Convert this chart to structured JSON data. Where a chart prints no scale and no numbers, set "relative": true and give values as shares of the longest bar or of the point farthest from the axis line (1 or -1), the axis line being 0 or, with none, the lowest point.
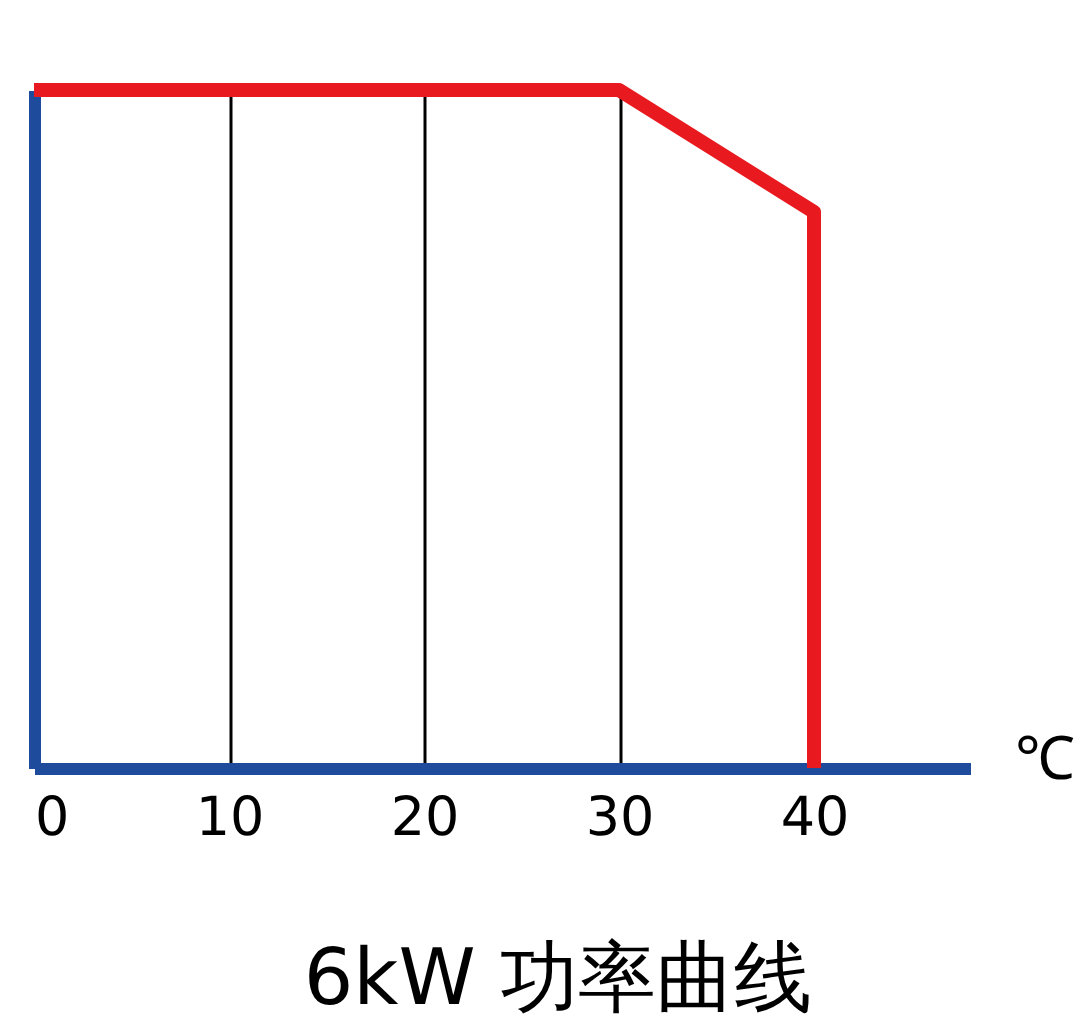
{
  "chart_data": {
    "type": "line",
    "title": "6kW 功率曲线",
    "xlabel": "℃",
    "relative": true,
    "x": [
      0,
      30,
      40,
      40
    ],
    "series": [
      {
        "color": "#e8191f",
        "values": [
          1,
          1,
          0.82,
          0
        ]
      }
    ],
    "xlim": [
      0,
      48
    ],
    "xticks": [
      0,
      10,
      20,
      30,
      40
    ],
    "grid": "x",
    "line_style": "solid"
  }
}
